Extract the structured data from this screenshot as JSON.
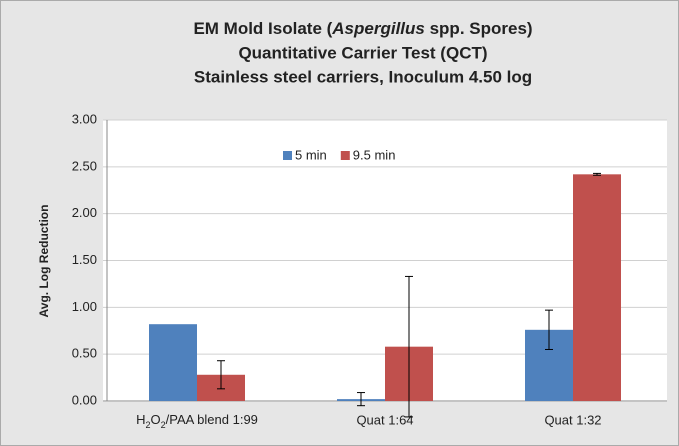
{
  "chart_data": {
    "type": "bar",
    "title": [
      [
        "EM Mold Isolate (",
        "Aspergillus",
        " spp. Spores)"
      ],
      "Quantitative Carrier Test (QCT)",
      "Stainless steel carriers, Inoculum 4.50 log"
    ],
    "ylabel": "Avg. Log Reduction",
    "categories": [
      [
        "H",
        "2",
        "O",
        "2",
        "/PAA blend 1:99"
      ],
      "Quat 1:64",
      "Quat 1:32"
    ],
    "series": [
      {
        "name": "5 min",
        "color": "#4f81bd",
        "values": [
          0.82,
          0.02,
          0.76
        ],
        "errors": [
          null,
          0.07,
          0.21
        ]
      },
      {
        "name": "9.5 min",
        "color": "#c0504d",
        "values": [
          0.28,
          0.58,
          2.42
        ],
        "errors": [
          0.15,
          0.75,
          0.01
        ]
      }
    ],
    "ylim": [
      0,
      3
    ],
    "yticks": [
      {
        "value": 0,
        "label": "0.00"
      },
      {
        "value": 0.5,
        "label": "0.50"
      },
      {
        "value": 1,
        "label": "1.00"
      },
      {
        "value": 1.5,
        "label": "1.50"
      },
      {
        "value": 2,
        "label": "2.00"
      },
      {
        "value": 2.5,
        "label": "2.50"
      },
      {
        "value": 3,
        "label": "3.00"
      }
    ],
    "grid": true,
    "legend": "top"
  }
}
